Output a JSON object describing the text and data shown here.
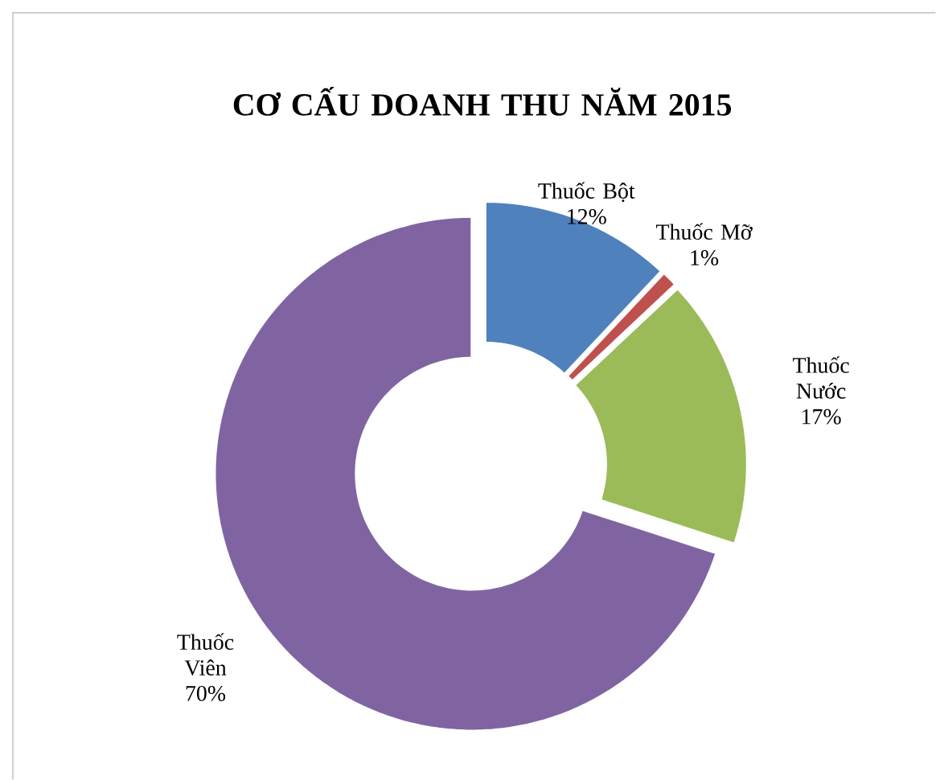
{
  "chart_data": {
    "type": "donut",
    "title": "CƠ CẤU DOANH THU NĂM 2015",
    "categories": [
      "Thuốc Bột",
      "Thuốc Mỡ",
      "Thuốc Nước",
      "Thuốc Viên"
    ],
    "values": [
      12,
      1,
      17,
      70
    ],
    "value_labels": [
      "12%",
      "1%",
      "17%",
      "70%"
    ],
    "colors": [
      "#4f81bd",
      "#c0504d",
      "#9bbb59",
      "#8064a2"
    ]
  }
}
